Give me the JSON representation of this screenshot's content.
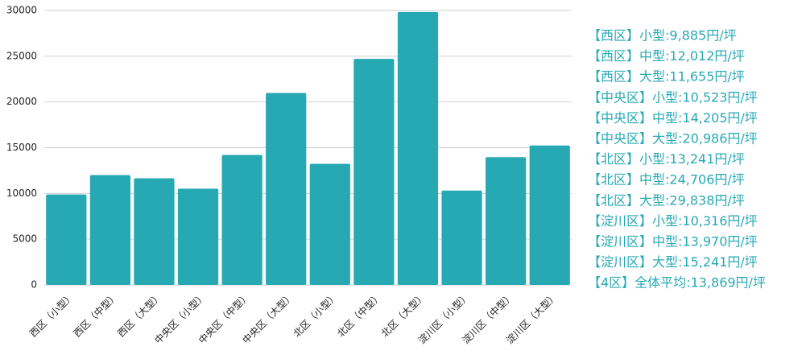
{
  "chart_data": {
    "type": "bar",
    "categories": [
      "西区（小型）",
      "西区（中型）",
      "西区（大型）",
      "中央区（小型）",
      "中央区（中型）",
      "中央区（大型）",
      "北区（小型）",
      "北区（中型）",
      "北区（大型）",
      "淀川区（小型）",
      "淀川区（中型）",
      "淀川区（大型）"
    ],
    "values": [
      9885,
      12012,
      11655,
      10523,
      14205,
      20986,
      13241,
      24706,
      29838,
      10316,
      13970,
      15241
    ],
    "color": "#27a9b4",
    "ylim": [
      0,
      30000
    ],
    "yticks": [
      0,
      5000,
      10000,
      15000,
      20000,
      25000,
      30000
    ],
    "grid": true,
    "annotations": [
      "【西区】小型:9,885円/坪",
      "【西区】中型:12,012円/坪",
      "【西区】大型:11,655円/坪",
      "【中央区】小型:10,523円/坪",
      "【中央区】中型:14,205円/坪",
      "【中央区】大型:20,986円/坪",
      "【北区】小型:13,241円/坪",
      "【北区】中型:24,706円/坪",
      "【北区】大型:29,838円/坪",
      "【淀川区】小型:10,316円/坪",
      "【淀川区】中型:13,970円/坪",
      "【淀川区】大型:15,241円/坪",
      "【4区】全体平均:13,869円/坪"
    ]
  }
}
